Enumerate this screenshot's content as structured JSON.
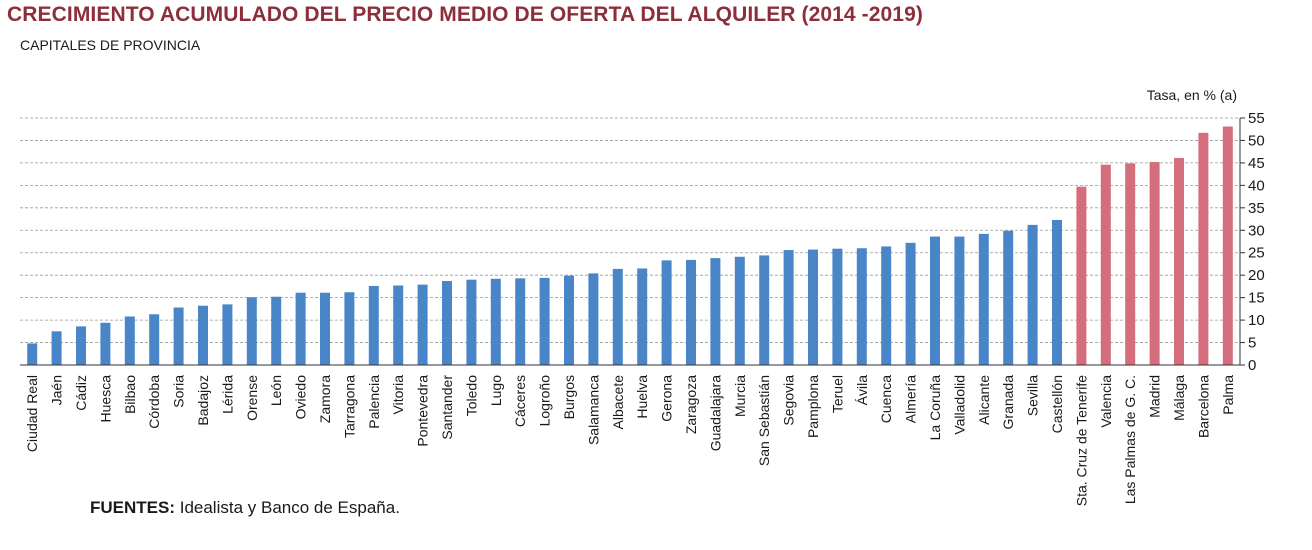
{
  "title": "CRECIMIENTO ACUMULADO DEL PRECIO MEDIO DE OFERTA DEL ALQUILER (2014 -2019)",
  "subtitle": "CAPITALES DE PROVINCIA",
  "source_label": "FUENTES:",
  "source_text": " Idealista y Banco de España.",
  "colors": {
    "blue": "#4a86c7",
    "red": "#d46e7c",
    "title": "#8c2f3a",
    "grid": "#999999"
  },
  "chart_data": {
    "type": "bar",
    "unit_label": "Tasa, en % (a)",
    "ylim": [
      0,
      55
    ],
    "yticks": [
      0,
      5,
      10,
      15,
      20,
      25,
      30,
      35,
      40,
      45,
      50,
      55
    ],
    "grid": true,
    "categories": [
      "Ciudad Real",
      "Jaén",
      "Cádiz",
      "Huesca",
      "Bilbao",
      "Córdoba",
      "Soria",
      "Badajoz",
      "Lérida",
      "Orense",
      "León",
      "Oviedo",
      "Zamora",
      "Tarragona",
      "Palencia",
      "Vitoria",
      "Pontevedra",
      "Santander",
      "Toledo",
      "Lugo",
      "Cáceres",
      "Logroño",
      "Burgos",
      "Salamanca",
      "Albacete",
      "Huelva",
      "Gerona",
      "Zaragoza",
      "Guadalajara",
      "Murcia",
      "San Sebastián",
      "Segovia",
      "Pamplona",
      "Teruel",
      "Ávila",
      "Cuenca",
      "Almería",
      "La Coruña",
      "Valladolid",
      "Alicante",
      "Granada",
      "Sevilla",
      "Castellón",
      "Sta. Cruz de Tenerife",
      "Valencia",
      "Las Palmas de G. C.",
      "Madrid",
      "Málaga",
      "Barcelona",
      "Palma"
    ],
    "values": [
      4.8,
      7.5,
      8.6,
      9.4,
      10.8,
      11.3,
      12.8,
      13.2,
      13.5,
      15.1,
      15.2,
      16.1,
      16.1,
      16.2,
      17.6,
      17.7,
      17.9,
      18.7,
      19.0,
      19.2,
      19.3,
      19.4,
      19.9,
      20.4,
      21.4,
      21.5,
      23.3,
      23.4,
      23.8,
      24.1,
      24.4,
      25.6,
      25.7,
      25.9,
      26.0,
      26.4,
      27.2,
      28.6,
      28.6,
      29.2,
      29.9,
      31.2,
      32.3,
      39.7,
      44.6,
      44.9,
      45.2,
      46.1,
      51.7,
      53.1
    ],
    "highlight_from_index": 43
  }
}
